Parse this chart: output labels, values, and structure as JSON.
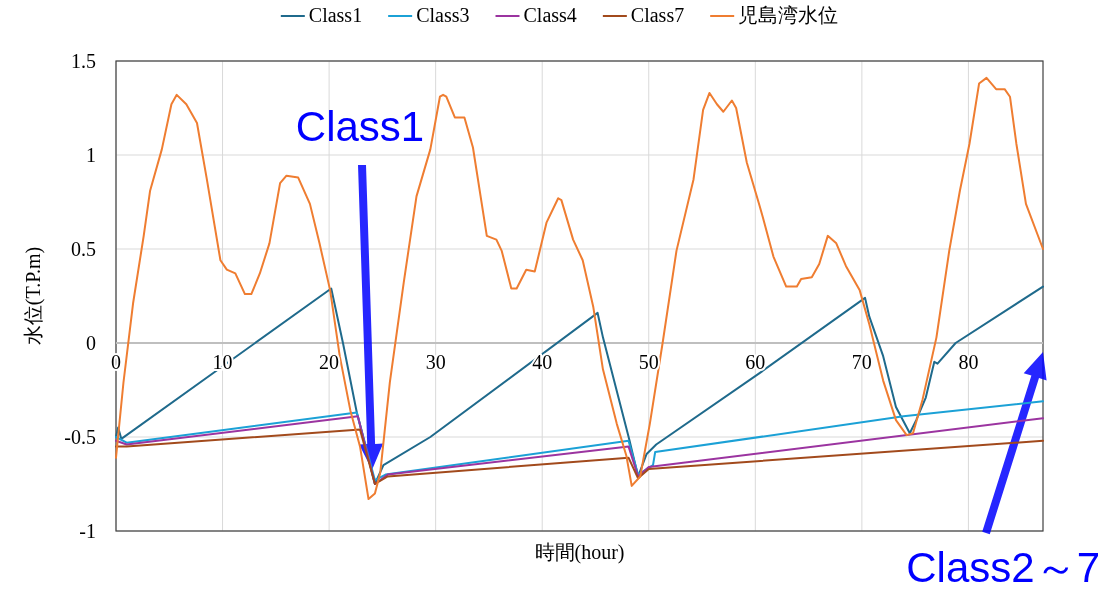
{
  "chart_data": {
    "type": "line",
    "xlabel": "時間(hour)",
    "ylabel": "水位(T.P.m)",
    "xlim": [
      0,
      87
    ],
    "ylim": [
      -1,
      1.5
    ],
    "xticks": [
      0,
      10,
      20,
      30,
      40,
      50,
      60,
      70,
      80
    ],
    "yticks": [
      -1,
      -0.5,
      0,
      0.5,
      1,
      1.5
    ],
    "grid": true,
    "legend": "top",
    "line_style": "solid",
    "annotations": [
      "Class1",
      "Class2～7"
    ],
    "series": [
      {
        "name": "Class1",
        "color": "#1f6a8c",
        "x": [
          0,
          0.2,
          0.5,
          20.2,
          21.3,
          22.6,
          24.3,
          25.1,
          29.5,
          45.2,
          45.7,
          48.2,
          49.0,
          49.8,
          50.7,
          60.4,
          70.3,
          70.7,
          72.0,
          73.2,
          74.5,
          75.1,
          76.0,
          76.8,
          77.1,
          78.8,
          87.0
        ],
        "values": [
          -0.5,
          -0.45,
          -0.51,
          0.29,
          0.0,
          -0.37,
          -0.75,
          -0.65,
          -0.5,
          0.16,
          0.03,
          -0.52,
          -0.71,
          -0.59,
          -0.54,
          -0.16,
          0.24,
          0.14,
          -0.07,
          -0.34,
          -0.48,
          -0.41,
          -0.29,
          -0.1,
          -0.11,
          0.0,
          0.3
        ]
      },
      {
        "name": "Class3",
        "color": "#1ba1d6",
        "x": [
          0,
          1,
          22.6,
          24.3,
          25.3,
          48.1,
          49.0,
          50.4,
          50.6,
          73.9,
          87.0
        ],
        "values": [
          -0.5,
          -0.53,
          -0.37,
          -0.73,
          -0.7,
          -0.52,
          -0.7,
          -0.65,
          -0.58,
          -0.39,
          -0.31
        ]
      },
      {
        "name": "Class4",
        "color": "#9b34a0",
        "x": [
          0,
          1,
          22.7,
          24.3,
          25.5,
          48.1,
          49.0,
          50.0,
          87.0
        ],
        "values": [
          -0.52,
          -0.54,
          -0.39,
          -0.75,
          -0.7,
          -0.55,
          -0.71,
          -0.66,
          -0.4
        ]
      },
      {
        "name": "Class7",
        "color": "#a24a1c",
        "x": [
          0,
          1,
          22.9,
          24.3,
          25.5,
          48.1,
          49.0,
          50.0,
          87.0
        ],
        "values": [
          -0.55,
          -0.55,
          -0.46,
          -0.75,
          -0.71,
          -0.61,
          -0.72,
          -0.67,
          -0.52
        ]
      },
      {
        "name": "児島湾水位",
        "color": "#ef7d31",
        "x": [
          0,
          0.7,
          1.6,
          2.6,
          3.2,
          4.3,
          5.2,
          5.7,
          6.6,
          7.6,
          8.5,
          9.8,
          10.4,
          11.2,
          12.1,
          12.7,
          13.5,
          14.4,
          15.4,
          16.0,
          17.1,
          18.2,
          19.1,
          20.1,
          21.0,
          22.0,
          22.9,
          23.7,
          24.3,
          24.8,
          25.7,
          27.0,
          28.2,
          29.5,
          30.4,
          30.7,
          31.0,
          31.8,
          32.7,
          33.5,
          34.8,
          35.7,
          36.2,
          37.1,
          37.6,
          38.5,
          39.3,
          40.4,
          41.5,
          41.8,
          42.9,
          43.8,
          44.8,
          45.7,
          47.0,
          47.9,
          48.4,
          49.2,
          50.1,
          51.3,
          52.6,
          54.2,
          55.1,
          55.7,
          56.4,
          57.0,
          57.8,
          58.2,
          59.2,
          60.4,
          60.7,
          61.7,
          62.9,
          63.9,
          64.3,
          65.3,
          66.0,
          66.8,
          67.6,
          68.5,
          69.8,
          70.7,
          72.0,
          73.2,
          74.2,
          74.8,
          75.7,
          77.0,
          78.2,
          79.2,
          80.1,
          81.0,
          81.7,
          82.6,
          83.4,
          83.9,
          84.5,
          85.4,
          87.0
        ],
        "values": [
          -0.61,
          -0.21,
          0.21,
          0.57,
          0.81,
          1.03,
          1.27,
          1.32,
          1.27,
          1.17,
          0.88,
          0.44,
          0.39,
          0.37,
          0.26,
          0.26,
          0.37,
          0.53,
          0.85,
          0.89,
          0.88,
          0.74,
          0.53,
          0.28,
          -0.07,
          -0.36,
          -0.55,
          -0.83,
          -0.8,
          -0.69,
          -0.21,
          0.32,
          0.78,
          1.03,
          1.31,
          1.32,
          1.31,
          1.2,
          1.2,
          1.04,
          0.57,
          0.55,
          0.49,
          0.29,
          0.29,
          0.39,
          0.38,
          0.64,
          0.77,
          0.76,
          0.55,
          0.44,
          0.19,
          -0.14,
          -0.43,
          -0.6,
          -0.76,
          -0.71,
          -0.43,
          0.0,
          0.49,
          0.87,
          1.24,
          1.33,
          1.27,
          1.23,
          1.29,
          1.25,
          0.96,
          0.73,
          0.67,
          0.46,
          0.3,
          0.3,
          0.34,
          0.35,
          0.42,
          0.57,
          0.53,
          0.41,
          0.28,
          0.1,
          -0.2,
          -0.41,
          -0.49,
          -0.48,
          -0.3,
          0.03,
          0.49,
          0.81,
          1.06,
          1.38,
          1.41,
          1.35,
          1.35,
          1.31,
          1.06,
          0.74,
          0.5
        ]
      }
    ]
  }
}
